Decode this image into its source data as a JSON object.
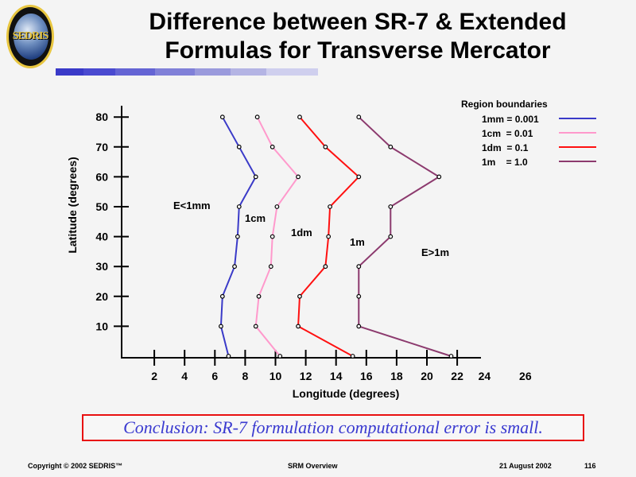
{
  "logo": {
    "text": "SEDRIS"
  },
  "title": {
    "line1": "Difference between SR-7 & Extended",
    "line2": "Formulas for Transverse Mercator"
  },
  "colors": {
    "blue": "#3a3ac8",
    "pink": "#ff99cc",
    "red": "#ff1010",
    "purple": "#8c3a6e",
    "conclusion_border": "#e81010",
    "conclusion_text": "#3a3ad0"
  },
  "chart_data": {
    "type": "line",
    "title": "",
    "xlabel": "Longitude (degrees)",
    "ylabel": "Latitude (degrees)",
    "xlim": [
      0,
      27
    ],
    "ylim": [
      0,
      80
    ],
    "x_ticks": [
      2,
      4,
      6,
      8,
      10,
      12,
      14,
      16,
      18,
      20,
      22
    ],
    "x_tick_labels": [
      {
        "v": 2,
        "t": "2"
      },
      {
        "v": 4,
        "t": "4"
      },
      {
        "v": 6,
        "t": "6"
      },
      {
        "v": 8,
        "t": "8"
      },
      {
        "v": 10,
        "t": "10"
      },
      {
        "v": 12,
        "t": "12"
      },
      {
        "v": 14,
        "t": "14"
      },
      {
        "v": 16,
        "t": "16"
      },
      {
        "v": 18,
        "t": "18"
      },
      {
        "v": 20,
        "t": "20"
      },
      {
        "v": 22,
        "t": "22"
      },
      {
        "v": 23.8,
        "t": "24"
      },
      {
        "v": 26.5,
        "t": "26"
      }
    ],
    "y_ticks": [
      10,
      20,
      30,
      40,
      50,
      60,
      70,
      80
    ],
    "y_tick_labels": [
      "10",
      "20",
      "30",
      "40",
      "50",
      "60",
      "70",
      "80"
    ],
    "latitudes": [
      80,
      70,
      60,
      50,
      40,
      30,
      20,
      10,
      0
    ],
    "legend": {
      "title": "Region boundaries",
      "placement": "top-right"
    },
    "series": [
      {
        "name": "1mm = 0.001",
        "color": "#3a3ac8",
        "longitudes": [
          6.5,
          7.6,
          8.7,
          7.6,
          7.5,
          7.3,
          6.5,
          6.4,
          6.9
        ]
      },
      {
        "name": "1cm  = 0.01",
        "color": "#ff99cc",
        "longitudes": [
          8.8,
          9.8,
          11.5,
          10.1,
          9.8,
          9.7,
          8.9,
          8.7,
          10.3
        ]
      },
      {
        "name": "1dm  = 0.1",
        "color": "#ff1010",
        "longitudes": [
          11.6,
          13.3,
          15.5,
          13.6,
          13.5,
          13.3,
          11.6,
          11.5,
          15.1
        ]
      },
      {
        "name": "1m    = 1.0",
        "color": "#8c3a6e",
        "longitudes": [
          15.5,
          17.6,
          20.8,
          17.6,
          17.6,
          15.5,
          15.5,
          15.5,
          21.6
        ]
      }
    ],
    "annotations": [
      "E<1mm",
      "1cm",
      "1dm",
      "1m",
      "E>1m"
    ]
  },
  "conclusion": "Conclusion:  SR-7 formulation computational error is small.",
  "footer": {
    "copyright": "Copyright © 2002 SEDRIS™",
    "center": "SRM Overview",
    "date": "21 August 2002",
    "page": "116"
  }
}
